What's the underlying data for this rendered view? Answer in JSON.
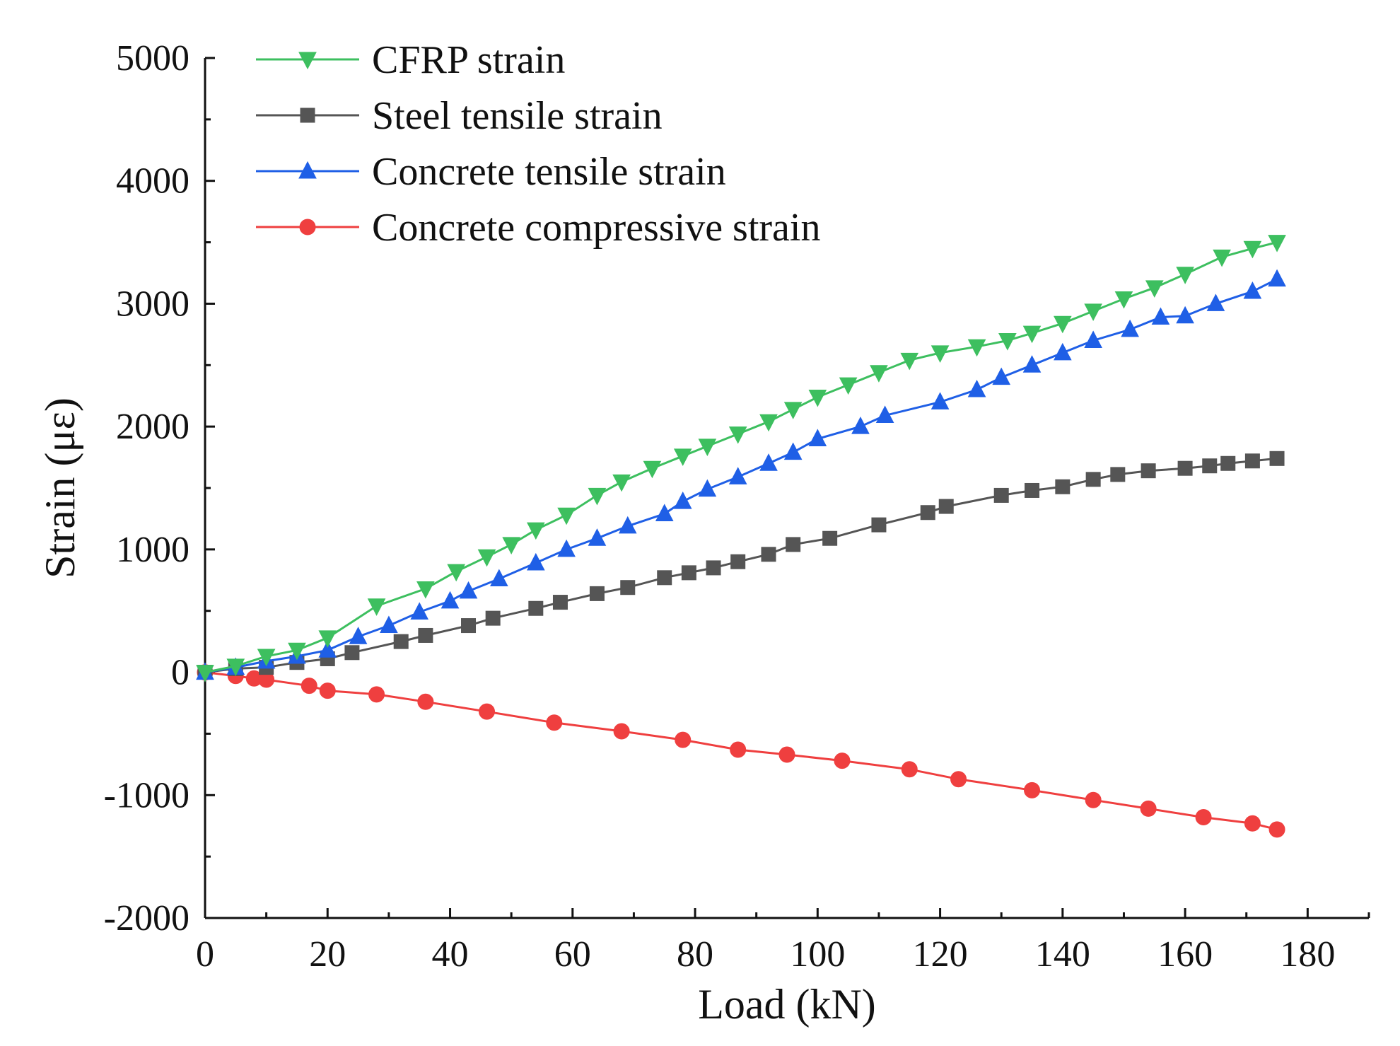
{
  "chart_data": {
    "type": "line",
    "title": "",
    "xlabel": "Load (kN)",
    "ylabel": "Strain (με)",
    "xlim": [
      0,
      190
    ],
    "ylim": [
      -2000,
      5000
    ],
    "xticks": [
      0,
      20,
      40,
      60,
      80,
      100,
      120,
      140,
      160,
      180
    ],
    "yticks": [
      -2000,
      -1000,
      0,
      1000,
      2000,
      3000,
      4000,
      5000
    ],
    "xtick_labels": [
      "0",
      "20",
      "40",
      "60",
      "80",
      "100",
      "120",
      "140",
      "160",
      "180"
    ],
    "ytick_labels": [
      "-2000",
      "-1000",
      "0",
      "1000",
      "2000",
      "3000",
      "4000",
      "5000"
    ],
    "legend_position": "top-left",
    "series": [
      {
        "name": "CFRP strain",
        "color": "#3dbf5f",
        "marker": "triangle-down",
        "x": [
          0,
          5,
          10,
          15,
          20,
          28,
          36,
          41,
          46,
          50,
          54,
          59,
          64,
          68,
          73,
          78,
          82,
          87,
          92,
          96,
          100,
          105,
          110,
          115,
          120,
          126,
          131,
          135,
          140,
          145,
          150,
          155,
          160,
          166,
          171,
          175
        ],
        "y": [
          0,
          50,
          130,
          180,
          280,
          540,
          680,
          820,
          940,
          1040,
          1160,
          1280,
          1440,
          1550,
          1660,
          1760,
          1840,
          1940,
          2040,
          2140,
          2240,
          2340,
          2440,
          2540,
          2600,
          2650,
          2700,
          2760,
          2840,
          2940,
          3040,
          3130,
          3240,
          3380,
          3450,
          3500
        ]
      },
      {
        "name": "Steel tensile strain",
        "color": "#555555",
        "marker": "square",
        "x": [
          0,
          5,
          10,
          15,
          20,
          24,
          32,
          36,
          43,
          47,
          54,
          58,
          64,
          69,
          75,
          79,
          83,
          87,
          92,
          96,
          102,
          110,
          118,
          121,
          130,
          135,
          140,
          145,
          149,
          154,
          160,
          164,
          167,
          171,
          175
        ],
        "y": [
          0,
          30,
          40,
          80,
          110,
          160,
          250,
          300,
          380,
          440,
          520,
          570,
          640,
          690,
          770,
          810,
          850,
          900,
          960,
          1040,
          1090,
          1200,
          1300,
          1350,
          1440,
          1480,
          1510,
          1570,
          1610,
          1640,
          1660,
          1680,
          1700,
          1720,
          1740
        ]
      },
      {
        "name": "Concrete tensile strain",
        "color": "#1f5fe6",
        "marker": "triangle-up",
        "x": [
          0,
          5,
          10,
          15,
          20,
          25,
          30,
          35,
          40,
          43,
          48,
          54,
          59,
          64,
          69,
          75,
          78,
          82,
          87,
          92,
          96,
          100,
          107,
          111,
          120,
          126,
          130,
          135,
          140,
          145,
          151,
          156,
          160,
          165,
          171,
          175
        ],
        "y": [
          0,
          40,
          90,
          130,
          180,
          290,
          380,
          490,
          580,
          660,
          760,
          890,
          1000,
          1090,
          1190,
          1290,
          1390,
          1490,
          1590,
          1700,
          1790,
          1900,
          2000,
          2090,
          2200,
          2300,
          2400,
          2500,
          2600,
          2700,
          2790,
          2890,
          2900,
          3000,
          3100,
          3200
        ]
      },
      {
        "name": "Concrete compressive strain",
        "color": "#ef3f3f",
        "marker": "circle",
        "x": [
          0,
          5,
          8,
          10,
          17,
          20,
          28,
          36,
          46,
          57,
          68,
          78,
          87,
          95,
          104,
          115,
          123,
          135,
          145,
          154,
          163,
          171,
          175
        ],
        "y": [
          0,
          -30,
          -50,
          -60,
          -110,
          -150,
          -180,
          -240,
          -320,
          -410,
          -480,
          -550,
          -630,
          -670,
          -720,
          -790,
          -870,
          -960,
          -1040,
          -1110,
          -1180,
          -1230,
          -1280
        ]
      }
    ]
  }
}
